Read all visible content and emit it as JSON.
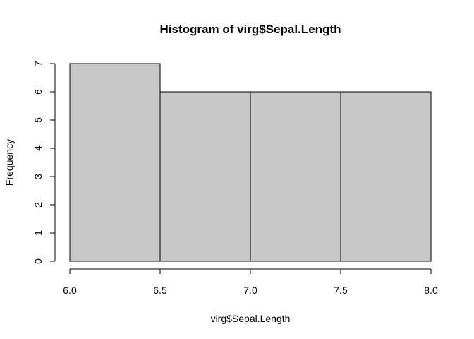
{
  "chart_data": {
    "type": "bar",
    "title": "Histogram of virg$Sepal.Length",
    "xlabel": "virg$Sepal.Length",
    "ylabel": "Frequency",
    "bins": [
      {
        "from": 6.0,
        "to": 6.5,
        "count": 7
      },
      {
        "from": 6.5,
        "to": 7.0,
        "count": 6
      },
      {
        "from": 7.0,
        "to": 7.5,
        "count": 6
      },
      {
        "from": 7.5,
        "to": 8.0,
        "count": 6
      }
    ],
    "xlim": [
      6.0,
      8.0
    ],
    "ylim": [
      0,
      7
    ],
    "x_ticks": [
      "6.0",
      "6.5",
      "7.0",
      "7.5",
      "8.0"
    ],
    "y_ticks": [
      "0",
      "1",
      "2",
      "3",
      "4",
      "5",
      "6",
      "7"
    ],
    "bar_fill": "#c8c8c8",
    "grid": false,
    "legend": "none"
  }
}
